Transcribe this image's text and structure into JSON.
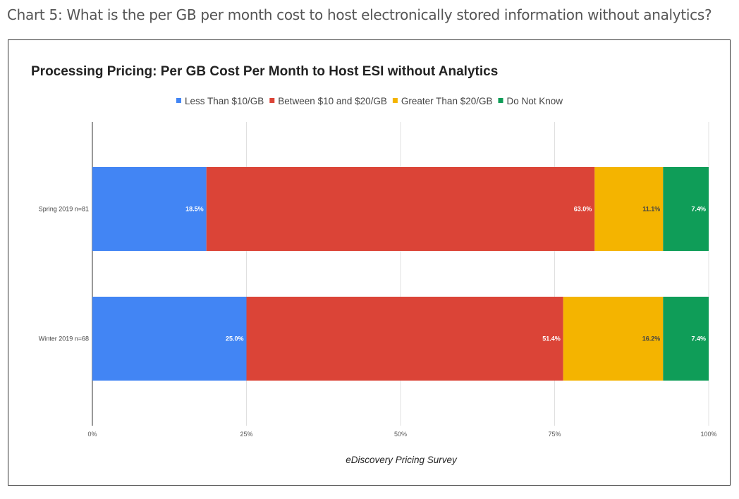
{
  "page_heading": "Chart 5: What is the per GB per month cost to host electronically stored information without analytics?",
  "chart_data": {
    "type": "bar",
    "orientation": "horizontal",
    "stacked": "percent",
    "title": "Processing Pricing: Per GB Cost Per Month to Host ESI without Analytics",
    "caption": "eDiscovery Pricing Survey",
    "categories": [
      "Spring 2019 n=81",
      "Winter 2019 n=68"
    ],
    "series": [
      {
        "name": "Less Than $10/GB",
        "color": "#4285f4",
        "label_color": "#ffffff",
        "values": [
          18.5,
          25.0
        ],
        "labels": [
          "18.5%",
          "25.0%"
        ]
      },
      {
        "name": "Between $10 and $20/GB",
        "color": "#db4437",
        "label_color": "#ffffff",
        "values": [
          63.0,
          51.4
        ],
        "labels": [
          "63.0%",
          "51.4%"
        ]
      },
      {
        "name": "Greater Than $20/GB",
        "color": "#f4b400",
        "label_color": "#444444",
        "values": [
          11.1,
          16.2
        ],
        "labels": [
          "11.1%",
          "16.2%"
        ]
      },
      {
        "name": "Do Not Know",
        "color": "#0f9d58",
        "label_color": "#ffffff",
        "values": [
          7.4,
          7.4
        ],
        "labels": [
          "7.4%",
          "7.4%"
        ]
      }
    ],
    "xlim": [
      0,
      100
    ],
    "x_ticks": [
      0,
      25,
      50,
      75,
      100
    ],
    "x_tick_labels": [
      "0%",
      "25%",
      "50%",
      "75%",
      "100%"
    ],
    "grid": true,
    "legend_position": "top"
  }
}
